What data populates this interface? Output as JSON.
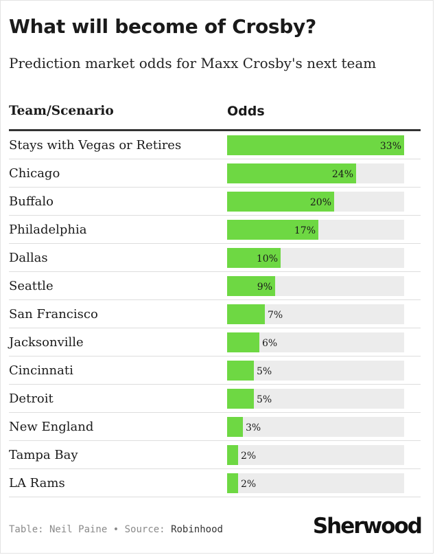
{
  "title": "What will become of Crosby?",
  "subtitle": "Prediction market odds for Maxx Crosby's next team",
  "columns": {
    "team": "Team/Scenario",
    "odds": "Odds"
  },
  "credit": {
    "table_by": "Table: Neil Paine",
    "separator": "•",
    "source_label": "Source:",
    "source": "Robinhood"
  },
  "logo": "Sherwood",
  "colors": {
    "bar": "#6ed843",
    "track": "#ececec",
    "rule": "#333333"
  },
  "chart_data": {
    "type": "bar",
    "orientation": "horizontal",
    "categories": [
      "Stays with Vegas or Retires",
      "Chicago",
      "Buffalo",
      "Philadelphia",
      "Dallas",
      "Seattle",
      "San Francisco",
      "Jacksonville",
      "Cincinnati",
      "Detroit",
      "New England",
      "Tampa Bay",
      "LA Rams"
    ],
    "values": [
      33,
      24,
      20,
      17,
      10,
      9,
      7,
      6,
      5,
      5,
      3,
      2,
      2
    ],
    "labels": [
      "33%",
      "24%",
      "20%",
      "17%",
      "10%",
      "9%",
      "7%",
      "6%",
      "5%",
      "5%",
      "3%",
      "2%",
      "2%"
    ],
    "xlim": [
      0,
      33
    ],
    "unit": "%"
  }
}
